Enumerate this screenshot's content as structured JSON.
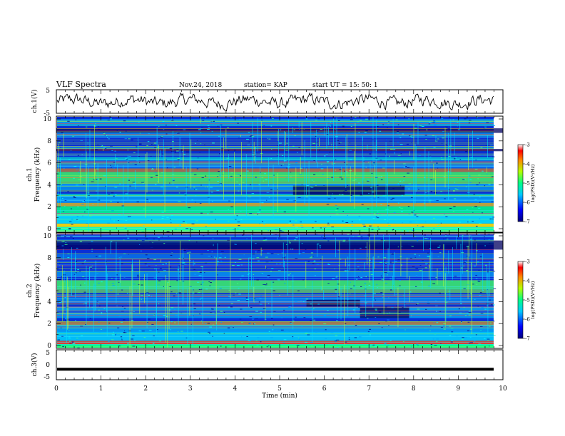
{
  "header": {
    "title": "VLF Spectra",
    "date": "Nov.24, 2018",
    "station": "station= KAP",
    "start": "start  UT =   15: 50: 1"
  },
  "chart_data": [
    {
      "type": "line",
      "panel": "ch1-waveform",
      "ylabel": "ch.1(V)",
      "ylim": [
        -5,
        5
      ],
      "yticks": [
        "5",
        "-5"
      ],
      "xlim": [
        0,
        10
      ],
      "description_values": "noisy waveform fluctuating roughly between -3 and 3 V",
      "color": "#000000"
    },
    {
      "type": "heatmap",
      "panel": "ch1-spectrogram",
      "ylabel": "ch.1",
      "ylabel2": "Frequency  (kHz)",
      "ylim": [
        0,
        10
      ],
      "yticks": [
        "0",
        "2",
        "4",
        "6",
        "8",
        "10"
      ],
      "xlim": [
        0,
        10
      ],
      "zlim": [
        -7,
        -3
      ],
      "colorbar_ticks": [
        "-3",
        "-4",
        "-5",
        "-6",
        "-7"
      ],
      "colorbar_label": "log(PSD)(V²/Hz)"
    },
    {
      "type": "heatmap",
      "panel": "ch2-spectrogram",
      "ylabel": "ch.2",
      "ylabel2": "Frequency  (kHz)",
      "ylim": [
        0,
        10
      ],
      "yticks": [
        "0",
        "2",
        "4",
        "6",
        "8",
        "10"
      ],
      "xlim": [
        0,
        10
      ],
      "zlim": [
        -7,
        -3
      ],
      "colorbar_ticks": [
        "-3",
        "-4",
        "-5",
        "-6",
        "-7"
      ],
      "colorbar_label": "log(PSD)(V²/Hz)"
    },
    {
      "type": "line",
      "panel": "ch3-waveform",
      "ylabel": "ch.3(V)",
      "ylim": [
        -5,
        5
      ],
      "yticks": [
        "5",
        "0",
        "-5"
      ],
      "xlim": [
        0,
        10
      ],
      "value": -1.5,
      "color": "#000000"
    }
  ],
  "xaxis": {
    "label": "Time  (min)",
    "ticks": [
      "0",
      "1",
      "2",
      "3",
      "4",
      "5",
      "6",
      "7",
      "8",
      "9",
      "10"
    ],
    "range": [
      0,
      10
    ]
  }
}
